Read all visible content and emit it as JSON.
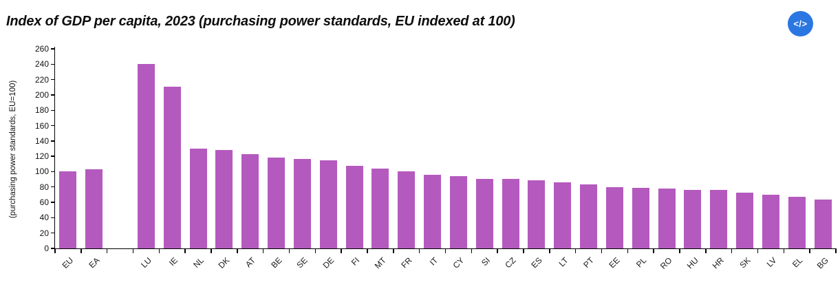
{
  "header": {
    "title": "Index of GDP per capita, 2023 (purchasing power standards, EU indexed at 100)",
    "embed_icon_label": "</>",
    "embed_button_color": "#2b77e2"
  },
  "chart_data": {
    "type": "bar",
    "title": "Index of GDP per capita, 2023 (purchasing power standards, EU indexed at 100)",
    "xlabel": "",
    "ylabel": "(purchasing power standards, EU=100)",
    "ylim": [
      0,
      260
    ],
    "ytick_step": 20,
    "grid": false,
    "legend": false,
    "bar_color": "#b45abe",
    "axis_color": "#000000",
    "categories": [
      "EU",
      "EA",
      null,
      "LU",
      "IE",
      "NL",
      "DK",
      "AT",
      "BE",
      "SE",
      "DE",
      "FI",
      "MT",
      "FR",
      "IT",
      "CY",
      "SI",
      "CZ",
      "ES",
      "LT",
      "PT",
      "EE",
      "PL",
      "RO",
      "HU",
      "HR",
      "SK",
      "LV",
      "EL",
      "BG"
    ],
    "values": [
      100,
      103,
      null,
      240,
      211,
      130,
      128,
      123,
      118,
      117,
      115,
      108,
      104,
      100,
      96,
      94,
      91,
      91,
      89,
      86,
      83,
      80,
      79,
      78,
      76,
      76,
      73,
      70,
      67,
      64
    ]
  }
}
